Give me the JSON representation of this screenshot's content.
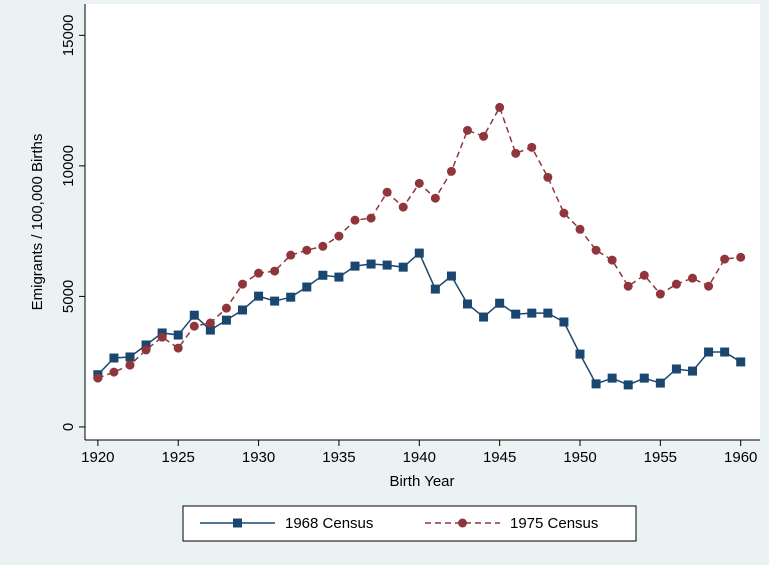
{
  "chart_data": {
    "type": "line",
    "x_label": "Birth Year",
    "y_label": "Emigrants / 100,000 Births",
    "x": [
      1920,
      1921,
      1922,
      1923,
      1924,
      1925,
      1926,
      1927,
      1928,
      1929,
      1930,
      1931,
      1932,
      1933,
      1934,
      1935,
      1936,
      1937,
      1938,
      1939,
      1940,
      1941,
      1942,
      1943,
      1944,
      1945,
      1946,
      1947,
      1948,
      1949,
      1950,
      1951,
      1952,
      1953,
      1954,
      1955,
      1956,
      1957,
      1958,
      1959,
      1960
    ],
    "series": [
      {
        "name": "1968 Census",
        "color": "#1a476f",
        "marker": "square",
        "dash": false,
        "values": [
          2000,
          2640,
          2680,
          3140,
          3600,
          3520,
          4280,
          3710,
          4090,
          4480,
          5010,
          4820,
          4970,
          5360,
          5810,
          5740,
          6160,
          6240,
          6200,
          6120,
          6660,
          5280,
          5780,
          4710,
          4210,
          4740,
          4320,
          4360,
          4360,
          4020,
          2790,
          1650,
          1870,
          1610,
          1870,
          1680,
          2220,
          2140,
          2870,
          2870,
          2490
        ]
      },
      {
        "name": "1975 Census",
        "color": "#90353b",
        "marker": "circle",
        "dash": true,
        "values": [
          1870,
          2100,
          2370,
          2950,
          3440,
          3020,
          3860,
          3980,
          4550,
          5470,
          5890,
          5970,
          6580,
          6770,
          6920,
          7310,
          7920,
          8000,
          8990,
          8420,
          9330,
          8760,
          9790,
          11360,
          11130,
          12240,
          10480,
          10710,
          9560,
          8190,
          7570,
          6770,
          6390,
          5390,
          5810,
          5090,
          5470,
          5700,
          5390,
          6430,
          6500
        ]
      }
    ],
    "xlim": [
      1919.2,
      1961.2
    ],
    "xticks": [
      1920,
      1925,
      1930,
      1935,
      1940,
      1945,
      1950,
      1955,
      1960
    ],
    "ylim": [
      -500,
      16200
    ],
    "yticks": [
      0,
      5000,
      10000,
      15000
    ],
    "grid": false
  }
}
